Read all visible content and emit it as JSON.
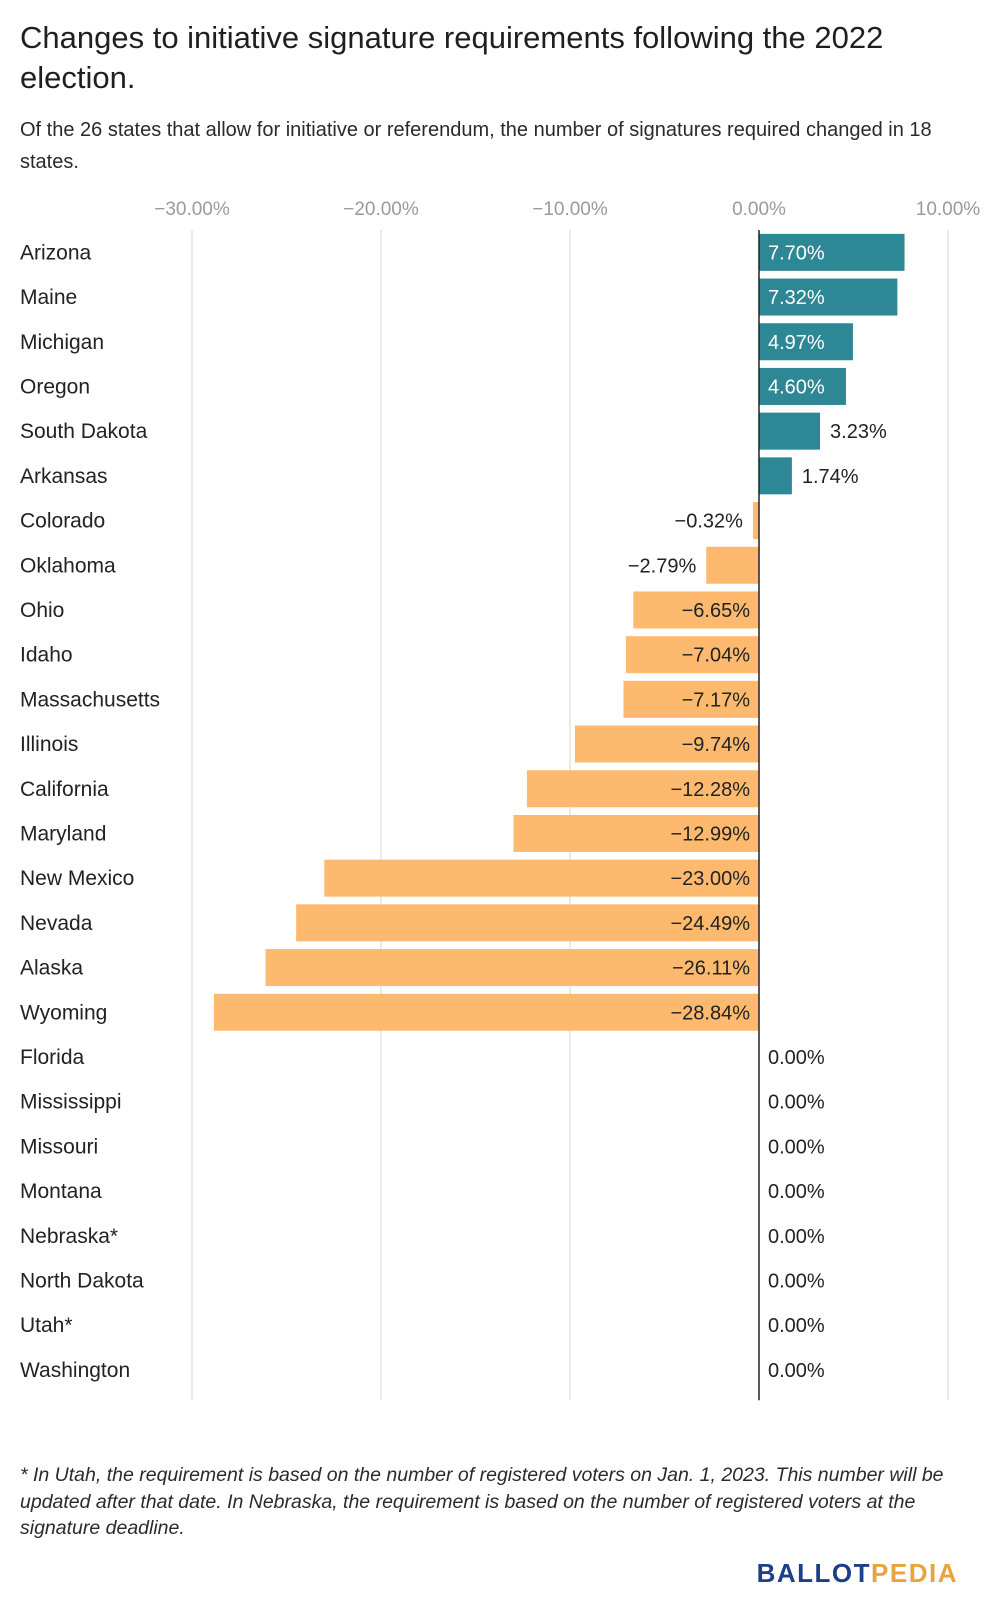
{
  "title": "Changes to initiative signature requirements following the 2022 election.",
  "subtitle": "Of the 26 states that allow for initiative or referendum, the number of signatures required changed in 18 states.",
  "footnote": "* In Utah, the requirement is based on the number of registered voters on Jan. 1, 2023. This number will be updated after that date. In Nebraska, the requirement is based on the number of registered voters at the signature deadline.",
  "logo": {
    "part1": "BALLOT",
    "part2": "PEDIA"
  },
  "colors": {
    "positive": "#2e8794",
    "negative": "#fdba6e",
    "grid": "#dddddd",
    "zero_line": "#222222",
    "tick_label": "#9a9a9a",
    "logo_primary": "#1b3f8b",
    "logo_accent": "#e9a43d"
  },
  "chart_data": {
    "type": "bar",
    "orientation": "horizontal",
    "xlim": [
      -30,
      10
    ],
    "x_ticks": [
      -30,
      -20,
      -10,
      0,
      10
    ],
    "x_tick_labels": [
      "−30.00%",
      "−20.00%",
      "−10.00%",
      "0.00%",
      "10.00%"
    ],
    "grid": true,
    "categories": [
      "Arizona",
      "Maine",
      "Michigan",
      "Oregon",
      "South Dakota",
      "Arkansas",
      "Colorado",
      "Oklahoma",
      "Ohio",
      "Idaho",
      "Massachusetts",
      "Illinois",
      "California",
      "Maryland",
      "New Mexico",
      "Nevada",
      "Alaska",
      "Wyoming",
      "Florida",
      "Mississippi",
      "Missouri",
      "Montana",
      "Nebraska*",
      "North Dakota",
      "Utah*",
      "Washington"
    ],
    "values": [
      7.7,
      7.32,
      4.97,
      4.6,
      3.23,
      1.74,
      -0.32,
      -2.79,
      -6.65,
      -7.04,
      -7.17,
      -9.74,
      -12.28,
      -12.99,
      -23.0,
      -24.49,
      -26.11,
      -28.84,
      0,
      0,
      0,
      0,
      0,
      0,
      0,
      0
    ],
    "value_labels": [
      "7.70%",
      "7.32%",
      "4.97%",
      "4.60%",
      "3.23%",
      "1.74%",
      "−0.32%",
      "−2.79%",
      "−6.65%",
      "−7.04%",
      "−7.17%",
      "−9.74%",
      "−12.28%",
      "−12.99%",
      "−23.00%",
      "−24.49%",
      "−26.11%",
      "−28.84%",
      "0.00%",
      "0.00%",
      "0.00%",
      "0.00%",
      "0.00%",
      "0.00%",
      "0.00%",
      "0.00%"
    ]
  }
}
